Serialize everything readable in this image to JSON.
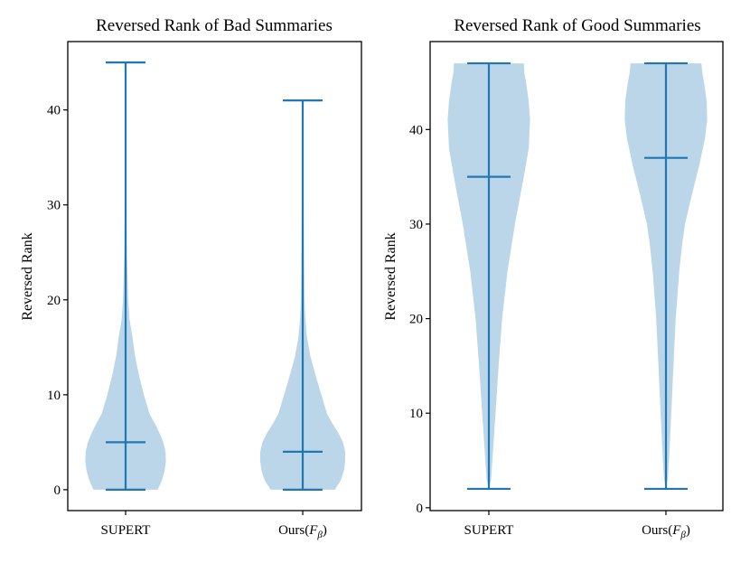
{
  "chart_data": [
    {
      "type": "violin",
      "title": "Reversed Rank of Bad Summaries",
      "ylabel": "Reversed Rank",
      "xlabel": "",
      "ylim": [
        -2.2,
        47.2
      ],
      "yticks": [
        0,
        10,
        20,
        30,
        40
      ],
      "grid": false,
      "categories": [
        {
          "label": "SUPERT",
          "suffix": "",
          "min": 0,
          "max": 45,
          "median": 5,
          "density": [
            [
              0,
              0.74
            ],
            [
              1,
              0.84
            ],
            [
              2,
              0.9
            ],
            [
              3,
              0.93
            ],
            [
              4,
              0.92
            ],
            [
              5,
              0.87
            ],
            [
              6,
              0.78
            ],
            [
              7,
              0.67
            ],
            [
              8,
              0.55
            ],
            [
              10,
              0.42
            ],
            [
              12,
              0.31
            ],
            [
              14,
              0.22
            ],
            [
              16,
              0.16
            ],
            [
              18,
              0.09
            ],
            [
              20,
              0.06
            ],
            [
              25,
              0.03
            ],
            [
              30,
              0.02
            ],
            [
              35,
              0.015
            ],
            [
              40,
              0.01
            ],
            [
              45,
              0
            ]
          ]
        },
        {
          "label": "Ours(",
          "suffix": ")",
          "min": 0,
          "max": 41,
          "median": 4,
          "density": [
            [
              0,
              0.74
            ],
            [
              1,
              0.88
            ],
            [
              2,
              0.95
            ],
            [
              3,
              0.98
            ],
            [
              4,
              0.98
            ],
            [
              5,
              0.93
            ],
            [
              6,
              0.82
            ],
            [
              7,
              0.68
            ],
            [
              8,
              0.56
            ],
            [
              10,
              0.43
            ],
            [
              12,
              0.3
            ],
            [
              14,
              0.18
            ],
            [
              16,
              0.1
            ],
            [
              18,
              0.06
            ],
            [
              20,
              0.04
            ],
            [
              25,
              0.03
            ],
            [
              30,
              0.02
            ],
            [
              35,
              0.01
            ],
            [
              41,
              0
            ]
          ]
        }
      ]
    },
    {
      "type": "violin",
      "title": "Reversed Rank of Good Summaries",
      "ylabel": "Reversed Rank",
      "xlabel": "",
      "ylim": [
        -0.3,
        49.3
      ],
      "yticks": [
        0,
        10,
        20,
        30,
        40
      ],
      "grid": false,
      "categories": [
        {
          "label": "SUPERT",
          "suffix": "",
          "min": 2,
          "max": 47,
          "median": 35,
          "density": [
            [
              2,
              0
            ],
            [
              3,
              0.05
            ],
            [
              5,
              0.08
            ],
            [
              10,
              0.15
            ],
            [
              15,
              0.22
            ],
            [
              20,
              0.3
            ],
            [
              25,
              0.42
            ],
            [
              30,
              0.59
            ],
            [
              35,
              0.79
            ],
            [
              38,
              0.9
            ],
            [
              41,
              0.93
            ],
            [
              43,
              0.9
            ],
            [
              45,
              0.84
            ],
            [
              46,
              0.8
            ],
            [
              47,
              0.79
            ]
          ]
        },
        {
          "label": "Ours(",
          "suffix": ")",
          "min": 2,
          "max": 47,
          "median": 37,
          "density": [
            [
              2,
              0
            ],
            [
              3,
              0.04
            ],
            [
              5,
              0.07
            ],
            [
              10,
              0.12
            ],
            [
              15,
              0.17
            ],
            [
              20,
              0.22
            ],
            [
              25,
              0.3
            ],
            [
              28,
              0.37
            ],
            [
              30,
              0.43
            ],
            [
              33,
              0.58
            ],
            [
              36,
              0.74
            ],
            [
              39,
              0.88
            ],
            [
              41,
              0.93
            ],
            [
              43,
              0.92
            ],
            [
              45,
              0.86
            ],
            [
              46,
              0.82
            ],
            [
              47,
              0.8
            ]
          ]
        }
      ]
    }
  ]
}
